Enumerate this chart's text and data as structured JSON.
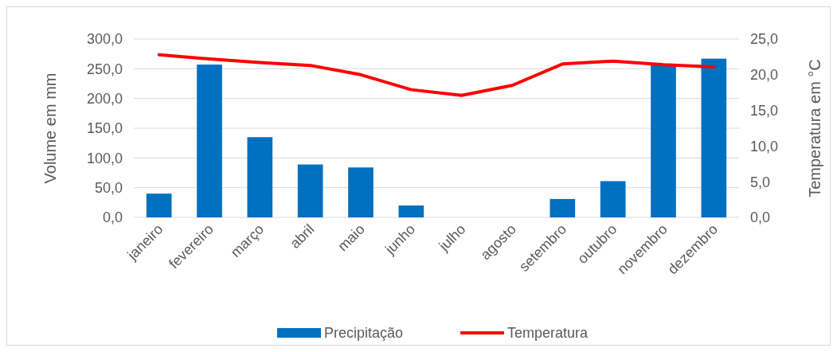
{
  "chart_data": {
    "type": "bar",
    "categories": [
      "janeiro",
      "fevereiro",
      "março",
      "abril",
      "maio",
      "junho",
      "julho",
      "agosto",
      "setembro",
      "outubro",
      "novembro",
      "dezembro"
    ],
    "ylabel": "Volume em mm",
    "y2label": "Temperatura em °C",
    "series": [
      {
        "name": "Precipitação",
        "color": "#0070c0",
        "values": [
          40,
          257,
          135,
          89,
          84,
          20,
          0,
          0,
          31,
          61,
          256,
          267
        ]
      },
      {
        "name": "Temperatura",
        "type": "line",
        "axis": "y2",
        "color": "#ff0000",
        "values": [
          22.8,
          22.2,
          21.7,
          21.3,
          20.0,
          17.9,
          17.1,
          18.5,
          21.5,
          21.9,
          21.4,
          21.1
        ]
      }
    ],
    "ylim": [
      0,
      300
    ],
    "yticks": [
      {
        "value": 0,
        "label": "0,0"
      },
      {
        "value": 50,
        "label": "50,0"
      },
      {
        "value": 100,
        "label": "100,0"
      },
      {
        "value": 150,
        "label": "150,0"
      },
      {
        "value": 200,
        "label": "200,0"
      },
      {
        "value": 250,
        "label": "250,0"
      },
      {
        "value": 300,
        "label": "300,0"
      }
    ],
    "y2lim": [
      0,
      25
    ],
    "y2ticks": [
      {
        "value": 0,
        "label": "0,0"
      },
      {
        "value": 5,
        "label": "5,0"
      },
      {
        "value": 10,
        "label": "10,0"
      },
      {
        "value": 15,
        "label": "15,0"
      },
      {
        "value": 20,
        "label": "20,0"
      },
      {
        "value": 25,
        "label": "25,0"
      }
    ],
    "grid": "y",
    "legend": "bottom",
    "marker": "none",
    "line_style": "solid"
  }
}
